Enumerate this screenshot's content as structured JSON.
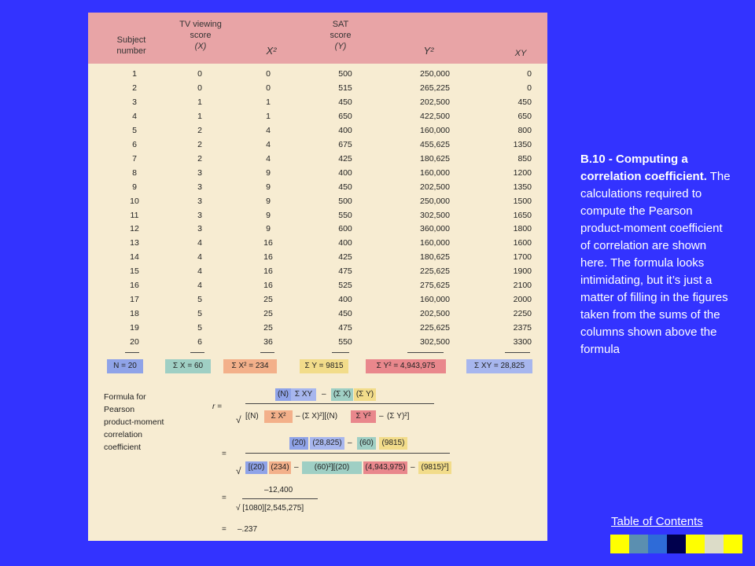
{
  "headers": {
    "subject": [
      "Subject",
      "number"
    ],
    "tv": [
      "TV viewing",
      "score",
      "(X)"
    ],
    "x2": "X²",
    "sat": [
      "SAT",
      "score",
      "(Y)"
    ],
    "y2": "Y²",
    "xy": "XY"
  },
  "rows": [
    [
      "1",
      "0",
      "0",
      "500",
      "250,000",
      "0"
    ],
    [
      "2",
      "0",
      "0",
      "515",
      "265,225",
      "0"
    ],
    [
      "3",
      "1",
      "1",
      "450",
      "202,500",
      "450"
    ],
    [
      "4",
      "1",
      "1",
      "650",
      "422,500",
      "650"
    ],
    [
      "5",
      "2",
      "4",
      "400",
      "160,000",
      "800"
    ],
    [
      "6",
      "2",
      "4",
      "675",
      "455,625",
      "1350"
    ],
    [
      "7",
      "2",
      "4",
      "425",
      "180,625",
      "850"
    ],
    [
      "8",
      "3",
      "9",
      "400",
      "160,000",
      "1200"
    ],
    [
      "9",
      "3",
      "9",
      "450",
      "202,500",
      "1350"
    ],
    [
      "10",
      "3",
      "9",
      "500",
      "250,000",
      "1500"
    ],
    [
      "11",
      "3",
      "9",
      "550",
      "302,500",
      "1650"
    ],
    [
      "12",
      "3",
      "9",
      "600",
      "360,000",
      "1800"
    ],
    [
      "13",
      "4",
      "16",
      "400",
      "160,000",
      "1600"
    ],
    [
      "14",
      "4",
      "16",
      "425",
      "180,625",
      "1700"
    ],
    [
      "15",
      "4",
      "16",
      "475",
      "225,625",
      "1900"
    ],
    [
      "16",
      "4",
      "16",
      "525",
      "275,625",
      "2100"
    ],
    [
      "17",
      "5",
      "25",
      "400",
      "160,000",
      "2000"
    ],
    [
      "18",
      "5",
      "25",
      "450",
      "202,500",
      "2250"
    ],
    [
      "19",
      "5",
      "25",
      "475",
      "225,625",
      "2375"
    ],
    [
      "20",
      "6",
      "36",
      "550",
      "302,500",
      "3300"
    ]
  ],
  "sums": {
    "n": {
      "text": "N = 20",
      "color": "#8fa3e8"
    },
    "sx": {
      "text": "Σ X = 60",
      "color": "#9fcfc4"
    },
    "sx2": {
      "text": "Σ X² = 234",
      "color": "#f3b08a"
    },
    "sy": {
      "text": "Σ Y = 9815",
      "color": "#f2dc8a"
    },
    "sy2": {
      "text": "Σ Y² = 4,943,975",
      "color": "#e9878c"
    },
    "sxy": {
      "text": "Σ XY = 28,825",
      "color": "#a7b6ee"
    }
  },
  "formula": {
    "label": [
      "Formula for",
      "Pearson",
      "product-moment",
      "correlation",
      "coefficient"
    ],
    "r_label": "r =",
    "line1": {
      "num": [
        "(N)",
        "Σ XY",
        "–",
        "(Σ X)",
        "(Σ Y)"
      ],
      "den": [
        "√",
        "[(N)",
        "Σ X²",
        "–",
        "(Σ X)²][(N)",
        "Σ Y²",
        "–",
        "(Σ Y)²]"
      ]
    },
    "line2": {
      "eq": "=",
      "num": [
        "(20)",
        "(28,825)",
        "–",
        "(60)",
        "(9815)"
      ],
      "den": [
        "√",
        "[(20)",
        "(234)",
        "–",
        "(60)²][(20)",
        "(4,943,975)",
        "–",
        "(9815)²]"
      ]
    },
    "line3": {
      "eq": "=",
      "num": "–12,400",
      "den": "√ [1080][2,545,275]"
    },
    "line4": {
      "eq": "=",
      "result": "–.237"
    }
  },
  "caption": {
    "bold": "B.10 - Computing a correlation coefficient.",
    "text": " The calculations required to compute the Pearson product-moment coefficient of correlation are shown here. The formula looks intimidating, but it’s just a matter of filling in the figures taken from the sums of the columns shown above the formula"
  },
  "toc_link": "Table of Contents",
  "swatches": [
    "#ffff00",
    "#5b8fb0",
    "#2e6bd8",
    "#00004d",
    "#ffff00",
    "#dcdcc8",
    "#ffff00"
  ],
  "colors": {
    "background": "#3333ff",
    "panel": "#f7ecd2",
    "header": "#e8a4a6"
  }
}
